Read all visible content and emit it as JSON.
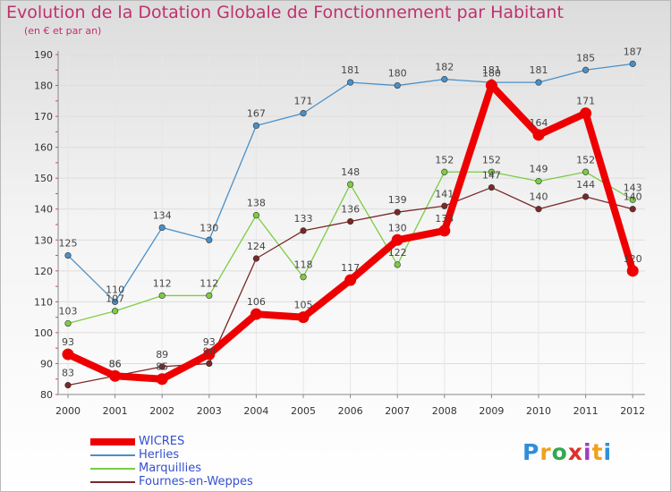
{
  "header": {
    "title": "Evolution de la Dotation Globale de Fonctionnement par Habitant",
    "subtitle": "(en € et par an)"
  },
  "logo": {
    "text": "Proxiti",
    "letters": [
      "P",
      "r",
      "o",
      "x",
      "i",
      "t",
      "i"
    ],
    "colors": [
      "#2f8fd8",
      "#f0a020",
      "#33a852",
      "#e0302a",
      "#9a3fbf",
      "#f0a020",
      "#2f8fd8"
    ]
  },
  "chart_data": {
    "type": "line",
    "title": "Evolution de la Dotation Globale de Fonctionnement par Habitant",
    "subtitle": "(en € et par an)",
    "xlabel": "",
    "ylabel": "",
    "ylim": [
      80,
      190
    ],
    "yticks": [
      80,
      90,
      100,
      110,
      120,
      130,
      140,
      150,
      160,
      170,
      180,
      190
    ],
    "x": [
      "2000",
      "2001",
      "2002",
      "2003",
      "2004",
      "2005",
      "2006",
      "2007",
      "2008",
      "2009",
      "2010",
      "2011",
      "2012"
    ],
    "grid": true,
    "legend_position": "bottom-left",
    "series": [
      {
        "name": "Herlies",
        "color": "#4a90c8",
        "highlight": false,
        "values": [
          125,
          110,
          134,
          130,
          167,
          171,
          181,
          180,
          182,
          181,
          181,
          185,
          187
        ]
      },
      {
        "name": "Marquillies",
        "color": "#7ccc44",
        "highlight": false,
        "values": [
          103,
          107,
          112,
          112,
          138,
          118,
          148,
          122,
          152,
          152,
          149,
          152,
          143
        ]
      },
      {
        "name": "Fournes-en-Weppes",
        "color": "#7a2828",
        "highlight": false,
        "values": [
          83,
          86,
          89,
          90,
          124,
          133,
          136,
          139,
          141,
          147,
          140,
          144,
          140
        ]
      },
      {
        "name": "WICRES",
        "color": "#ee0000",
        "highlight": true,
        "values": [
          93,
          86,
          85,
          93,
          106,
          105,
          117,
          130,
          133,
          180,
          164,
          171,
          120
        ]
      }
    ],
    "legend_order": [
      "WICRES",
      "Herlies",
      "Marquillies",
      "Fournes-en-Weppes"
    ]
  }
}
